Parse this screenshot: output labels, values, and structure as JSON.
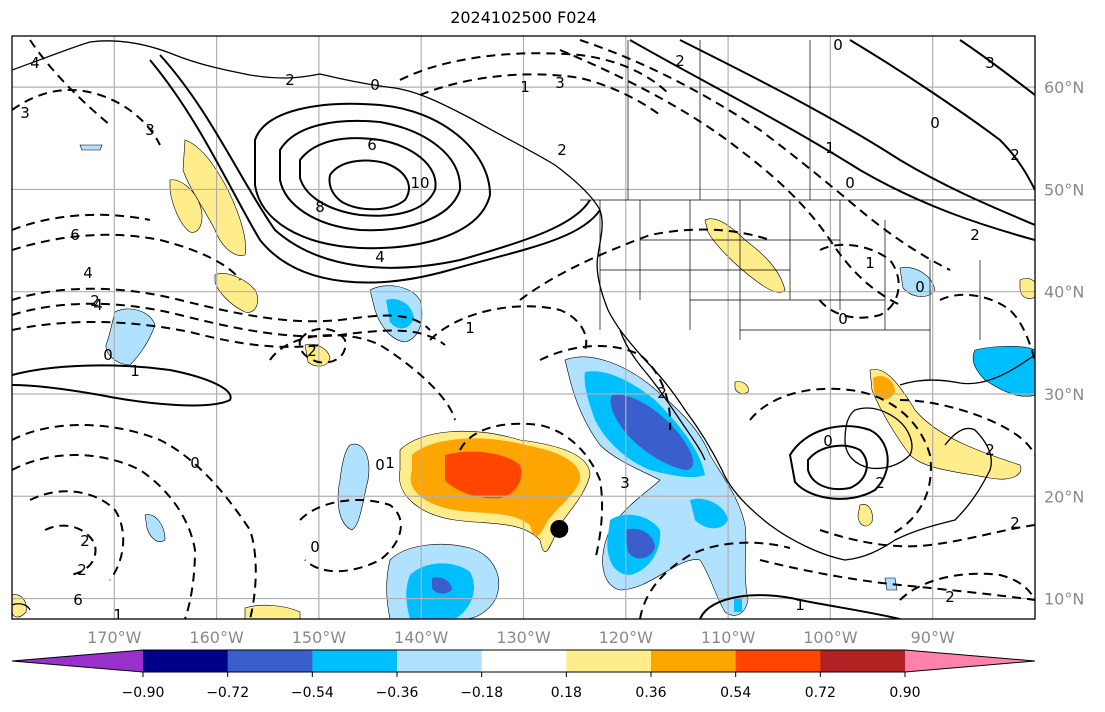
{
  "title": "2024102500 F024",
  "map": {
    "lon_ticks": [
      "170°W",
      "160°W",
      "150°W",
      "140°W",
      "130°W",
      "120°W",
      "110°W",
      "100°W",
      "90°W"
    ],
    "lat_ticks": [
      "60°N",
      "50°N",
      "40°N",
      "30°N",
      "20°N",
      "10°N"
    ],
    "lon_range": [
      -180,
      -80
    ],
    "lat_range": [
      8,
      65
    ],
    "contour_labels": [
      "4",
      "3",
      "3",
      "6",
      "4",
      "2",
      "0",
      "0",
      "1",
      "2",
      "6",
      "8",
      "10",
      "4",
      "4",
      "3",
      "2",
      "1",
      "1",
      "2",
      "3",
      "0",
      "0",
      "2",
      "2",
      "2",
      "0",
      "1",
      "1",
      "0",
      "2",
      "0",
      "2",
      "2",
      "0",
      "1",
      "1",
      "0",
      "2",
      "0",
      "2",
      "0",
      "3",
      "6",
      "1",
      "2",
      "2"
    ],
    "marker": {
      "lon": -126.5,
      "lat": 16.8
    }
  },
  "colorbar": {
    "ticks": [
      "−0.90",
      "−0.72",
      "−0.54",
      "−0.36",
      "−0.18",
      "0.18",
      "0.36",
      "0.54",
      "0.72",
      "0.90"
    ],
    "colors": [
      "#9932cc",
      "#00008b",
      "#3a5fcd",
      "#00bfff",
      "#b0e2ff",
      "#ffffff",
      "#ffec8b",
      "#ffa500",
      "#ff4500",
      "#b22222",
      "#ff82ab"
    ]
  }
}
